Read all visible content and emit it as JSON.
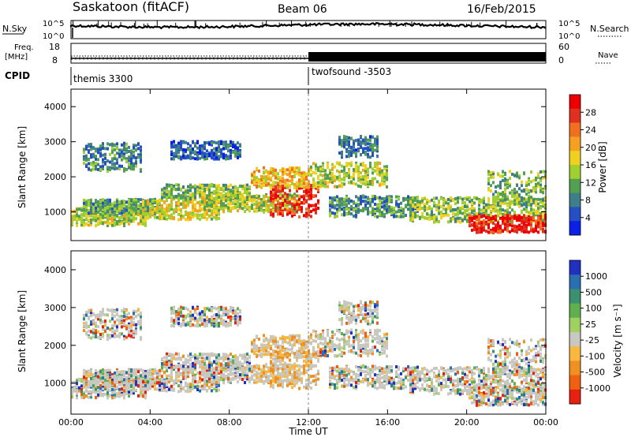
{
  "header": {
    "site": "Saskatoon (fitACF)",
    "beam": "Beam 06",
    "date": "16/Feb/2015"
  },
  "noise_panel": {
    "left_label": "N.Sky",
    "right_label": "N.Search",
    "left_ticks": [
      "10^5",
      "10^0"
    ],
    "right_ticks": [
      "10^5",
      "10^0"
    ]
  },
  "freq_panel": {
    "left_label_top": "Freq.",
    "left_label_unit": "[MHz]",
    "left_ticks": [
      "18",
      "8"
    ],
    "right_label": "Nave",
    "right_ticks": [
      "60",
      "0"
    ]
  },
  "cpid": {
    "label": "CPID",
    "segments": [
      {
        "name": "themis 3300",
        "start_hour": 0
      },
      {
        "name": "twofsound -3503",
        "start_hour": 12
      }
    ]
  },
  "colors": {
    "power": [
      "#0b1fe6",
      "#2550c4",
      "#3f7f8a",
      "#55a050",
      "#9fcf30",
      "#f0d020",
      "#f5a020",
      "#f07020",
      "#e03020",
      "#ee0000"
    ],
    "velocity": [
      "#2030c0",
      "#2a6fb0",
      "#3a9070",
      "#60b050",
      "#a0d060",
      "#c8c8c0",
      "#f8b840",
      "#f09020",
      "#f06010",
      "#e82010"
    ]
  },
  "chart_data": [
    {
      "type": "heatmap",
      "quantity": "power",
      "ylabel": "Slant Range [km]",
      "xlim_hours": [
        0,
        24
      ],
      "ylim_km": [
        180,
        4500
      ],
      "yticks": [
        1000,
        2000,
        3000,
        4000
      ],
      "colorbar": {
        "label": "Power [dB]",
        "ticks": [
          "28",
          "24",
          "20",
          "16",
          "12",
          "8",
          "4"
        ],
        "range": [
          0,
          30
        ]
      }
    },
    {
      "type": "heatmap",
      "quantity": "velocity",
      "ylabel": "Slant Range [km]",
      "xlabel": "Time UT",
      "xlim_hours": [
        0,
        24
      ],
      "ylim_km": [
        180,
        4500
      ],
      "yticks": [
        1000,
        2000,
        3000,
        4000
      ],
      "xtick_labels": [
        "00:00",
        "04:00",
        "08:00",
        "12:00",
        "16:00",
        "20:00",
        "00:00"
      ],
      "colorbar": {
        "label": "Velocity [m s⁻¹]",
        "ticks": [
          "1000",
          "500",
          "100",
          "25",
          "-25",
          "-100",
          "-500",
          "-1000"
        ]
      }
    }
  ]
}
